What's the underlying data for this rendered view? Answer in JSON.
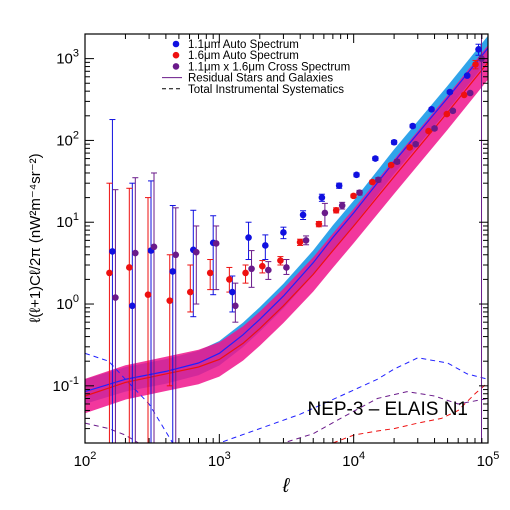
{
  "chart_data": {
    "type": "scatter",
    "x_scale": "log",
    "y_scale": "log",
    "xlim": [
      100,
      100000
    ],
    "ylim": [
      0.02,
      2000
    ],
    "xlabel": "ℓ",
    "ylabel": "ℓ(ℓ+1)Cℓ/2π  (nW²m⁻⁴sr⁻²)",
    "x_ticks": [
      {
        "value": 100,
        "base": "10",
        "exp": "2"
      },
      {
        "value": 1000,
        "base": "10",
        "exp": "3"
      },
      {
        "value": 10000,
        "base": "10",
        "exp": "4"
      },
      {
        "value": 100000,
        "base": "10",
        "exp": "5"
      }
    ],
    "y_ticks": [
      {
        "value": 0.1,
        "base": "10",
        "exp": "-1"
      },
      {
        "value": 1,
        "base": "10",
        "exp": "0"
      },
      {
        "value": 10,
        "base": "10",
        "exp": "1"
      },
      {
        "value": 100,
        "base": "10",
        "exp": "2"
      },
      {
        "value": 1000,
        "base": "10",
        "exp": "3"
      }
    ],
    "field_label": "NEP-3 – ELAIS N1",
    "legend": {
      "position": "top-center",
      "entries": [
        {
          "label": "1.1μm Auto Spectrum",
          "marker": "dot",
          "color": "#1010e0"
        },
        {
          "label": "1.6μm Auto Spectrum",
          "marker": "dot",
          "color": "#ee1010"
        },
        {
          "label": "1.1μm x 1.6μm Cross Spectrum",
          "marker": "dot",
          "color": "#6a1a8a"
        },
        {
          "label": "Residual Stars and Galaxies",
          "marker": "solid-line",
          "color": "#6a1a8a"
        },
        {
          "label": "Total Instrumental Systematics",
          "marker": "dashed-line",
          "color": "#000000"
        }
      ]
    },
    "series": [
      {
        "name": "1.1μm Auto Spectrum",
        "color": "#1010e0",
        "points": [
          {
            "x": 160,
            "y": 4.4,
            "lo": 0.02,
            "hi": 180
          },
          {
            "x": 225,
            "y": 0.95,
            "lo": 0.02,
            "hi": 30
          },
          {
            "x": 310,
            "y": 4.5,
            "lo": 0.02,
            "hi": 32
          },
          {
            "x": 450,
            "y": 2.5,
            "lo": 0.02,
            "hi": 16
          },
          {
            "x": 640,
            "y": 4.6,
            "lo": 0.7,
            "hi": 14
          },
          {
            "x": 900,
            "y": 5.6,
            "lo": 1.3,
            "hi": 12
          },
          {
            "x": 1250,
            "y": 1.4,
            "lo": 0.8,
            "hi": 2.2
          },
          {
            "x": 1650,
            "y": 6.5,
            "lo": 3.5,
            "hi": 10
          },
          {
            "x": 2200,
            "y": 5.2,
            "lo": 3.5,
            "hi": 7
          },
          {
            "x": 3000,
            "y": 7.5,
            "lo": 6.3,
            "hi": 8.7
          },
          {
            "x": 4200,
            "y": 12.3,
            "lo": 10.8,
            "hi": 13.8
          },
          {
            "x": 5800,
            "y": 20,
            "lo": 18,
            "hi": 22
          },
          {
            "x": 7800,
            "y": 28,
            "lo": 26,
            "hi": 30
          },
          {
            "x": 10500,
            "y": 38,
            "lo": 36,
            "hi": 40
          },
          {
            "x": 14500,
            "y": 60,
            "lo": 57,
            "hi": 63
          },
          {
            "x": 20000,
            "y": 95,
            "lo": 90,
            "hi": 100
          },
          {
            "x": 27500,
            "y": 150,
            "lo": 143,
            "hi": 157
          },
          {
            "x": 38000,
            "y": 240,
            "lo": 230,
            "hi": 250
          },
          {
            "x": 52000,
            "y": 390,
            "lo": 375,
            "hi": 405
          },
          {
            "x": 70000,
            "y": 620,
            "lo": 600,
            "hi": 640
          },
          {
            "x": 85000,
            "y": 1300,
            "lo": 1100,
            "hi": 1500
          }
        ]
      },
      {
        "name": "1.6μm Auto Spectrum",
        "color": "#ee1010",
        "points": [
          {
            "x": 160,
            "y": 2.4,
            "lo": 0.02,
            "hi": 30
          },
          {
            "x": 225,
            "y": 2.8,
            "lo": 0.02,
            "hi": 26
          },
          {
            "x": 310,
            "y": 1.3,
            "lo": 0.02,
            "hi": 20
          },
          {
            "x": 450,
            "y": 1.1,
            "lo": 0.1,
            "hi": 4
          },
          {
            "x": 640,
            "y": 1.4,
            "lo": 0.8,
            "hi": 3
          },
          {
            "x": 900,
            "y": 2.4,
            "lo": 1.5,
            "hi": 3.5
          },
          {
            "x": 1250,
            "y": 2.0,
            "lo": 1.4,
            "hi": 2.8
          },
          {
            "x": 1650,
            "y": 2.4,
            "lo": 1.8,
            "hi": 3.0
          },
          {
            "x": 2200,
            "y": 2.9,
            "lo": 2.4,
            "hi": 3.4
          },
          {
            "x": 3000,
            "y": 3.4,
            "lo": 3.0,
            "hi": 3.8
          },
          {
            "x": 4200,
            "y": 5.7,
            "lo": 5.2,
            "hi": 6.2
          },
          {
            "x": 5800,
            "y": 9.5,
            "lo": 8.8,
            "hi": 10.2
          },
          {
            "x": 7800,
            "y": 14,
            "lo": 13,
            "hi": 15
          },
          {
            "x": 10500,
            "y": 21,
            "lo": 20,
            "hi": 22
          },
          {
            "x": 14500,
            "y": 31,
            "lo": 29.5,
            "hi": 32.5
          },
          {
            "x": 20000,
            "y": 50,
            "lo": 48,
            "hi": 52
          },
          {
            "x": 27500,
            "y": 82,
            "lo": 79,
            "hi": 85
          },
          {
            "x": 38000,
            "y": 130,
            "lo": 125,
            "hi": 135
          },
          {
            "x": 52000,
            "y": 210,
            "lo": 203,
            "hi": 217
          },
          {
            "x": 70000,
            "y": 360,
            "lo": 350,
            "hi": 370
          },
          {
            "x": 85000,
            "y": 850,
            "lo": 750,
            "hi": 950
          }
        ]
      },
      {
        "name": "1.1μm x 1.6μm Cross Spectrum",
        "color": "#6a1a8a",
        "points": [
          {
            "x": 160,
            "y": 1.2,
            "lo": 0.02,
            "hi": 25
          },
          {
            "x": 225,
            "y": 4.2,
            "lo": 0.02,
            "hi": 35
          },
          {
            "x": 310,
            "y": 5.0,
            "lo": 0.02,
            "hi": 40
          },
          {
            "x": 450,
            "y": 4.0,
            "lo": 0.02,
            "hi": 15
          },
          {
            "x": 640,
            "y": 4.3,
            "lo": 1.0,
            "hi": 9
          },
          {
            "x": 900,
            "y": 5.5,
            "lo": 1.5,
            "hi": 9
          },
          {
            "x": 1250,
            "y": 0.95,
            "lo": 0.6,
            "hi": 1.8
          },
          {
            "x": 1650,
            "y": 2.7,
            "lo": 1.6,
            "hi": 4.5
          },
          {
            "x": 2200,
            "y": 2.6,
            "lo": 2.0,
            "hi": 3.3
          },
          {
            "x": 3000,
            "y": 2.8,
            "lo": 2.3,
            "hi": 3.5
          },
          {
            "x": 4200,
            "y": 6.0,
            "lo": 5.3,
            "hi": 6.8
          },
          {
            "x": 5800,
            "y": 13,
            "lo": 9,
            "hi": 17
          },
          {
            "x": 7800,
            "y": 16,
            "lo": 14.5,
            "hi": 17.5
          },
          {
            "x": 10500,
            "y": 23,
            "lo": 21.5,
            "hi": 24.5
          },
          {
            "x": 14500,
            "y": 33,
            "lo": 31,
            "hi": 35
          },
          {
            "x": 20000,
            "y": 55,
            "lo": 52,
            "hi": 58
          },
          {
            "x": 27500,
            "y": 90,
            "lo": 86,
            "hi": 94
          },
          {
            "x": 38000,
            "y": 140,
            "lo": 134,
            "hi": 146
          },
          {
            "x": 52000,
            "y": 230,
            "lo": 222,
            "hi": 238
          },
          {
            "x": 70000,
            "y": 380,
            "lo": 368,
            "hi": 392
          },
          {
            "x": 85000,
            "y": 1000,
            "lo": 0.02,
            "hi": 2000
          }
        ]
      }
    ],
    "model_bands": [
      {
        "name": "1.1μm residual model",
        "fill": "#1a9ae8",
        "line": "#2020ff",
        "width_dex": 0.15,
        "points": [
          [
            100,
            0.085
          ],
          [
            200,
            0.12
          ],
          [
            400,
            0.15
          ],
          [
            700,
            0.19
          ],
          [
            1000,
            0.25
          ],
          [
            1500,
            0.42
          ],
          [
            2000,
            0.65
          ],
          [
            3000,
            1.25
          ],
          [
            5000,
            3.2
          ],
          [
            7000,
            6.5
          ],
          [
            10000,
            13
          ],
          [
            20000,
            55
          ],
          [
            50000,
            330
          ],
          [
            100000,
            1350
          ]
        ]
      },
      {
        "name": "1.6μm residual model",
        "fill": "#f0148c",
        "line": "#ee1010",
        "width_dex": 0.21,
        "points": [
          [
            100,
            0.075
          ],
          [
            200,
            0.11
          ],
          [
            400,
            0.14
          ],
          [
            700,
            0.17
          ],
          [
            1000,
            0.21
          ],
          [
            1500,
            0.33
          ],
          [
            2000,
            0.5
          ],
          [
            3000,
            0.95
          ],
          [
            5000,
            2.3
          ],
          [
            7000,
            4.5
          ],
          [
            10000,
            9
          ],
          [
            20000,
            36
          ],
          [
            50000,
            220
          ],
          [
            100000,
            900
          ]
        ]
      }
    ],
    "systematics": [
      {
        "name": "1.1μm systematics",
        "color": "#2020ff",
        "points": [
          [
            100,
            0.25
          ],
          [
            150,
            0.2
          ],
          [
            200,
            0.12
          ],
          [
            300,
            0.06
          ],
          [
            450,
            0.02
          ],
          [
            1000,
            0.02
          ],
          [
            2000,
            0.03
          ],
          [
            4000,
            0.045
          ],
          [
            8000,
            0.075
          ],
          [
            15000,
            0.12
          ],
          [
            20000,
            0.16
          ],
          [
            30000,
            0.22
          ],
          [
            50000,
            0.19
          ],
          [
            70000,
            0.14
          ],
          [
            100000,
            0.12
          ]
        ]
      },
      {
        "name": "1.6μm systematics",
        "color": "#ee1010",
        "points": [
          [
            7000,
            0.02
          ],
          [
            10000,
            0.025
          ],
          [
            15000,
            0.028
          ],
          [
            20000,
            0.03
          ],
          [
            30000,
            0.035
          ],
          [
            45000,
            0.04
          ],
          [
            60000,
            0.05
          ],
          [
            80000,
            0.08
          ],
          [
            100000,
            0.11
          ]
        ]
      },
      {
        "name": "cross systematics",
        "color": "#6a1a8a",
        "points": [
          [
            100,
            0.035
          ],
          [
            150,
            0.03
          ],
          [
            200,
            0.025
          ],
          [
            250,
            0.02
          ],
          [
            3000,
            0.02
          ],
          [
            5000,
            0.026
          ],
          [
            8000,
            0.04
          ],
          [
            15000,
            0.07
          ],
          [
            25000,
            0.085
          ],
          [
            40000,
            0.075
          ],
          [
            60000,
            0.06
          ],
          [
            100000,
            0.07
          ]
        ]
      }
    ]
  }
}
